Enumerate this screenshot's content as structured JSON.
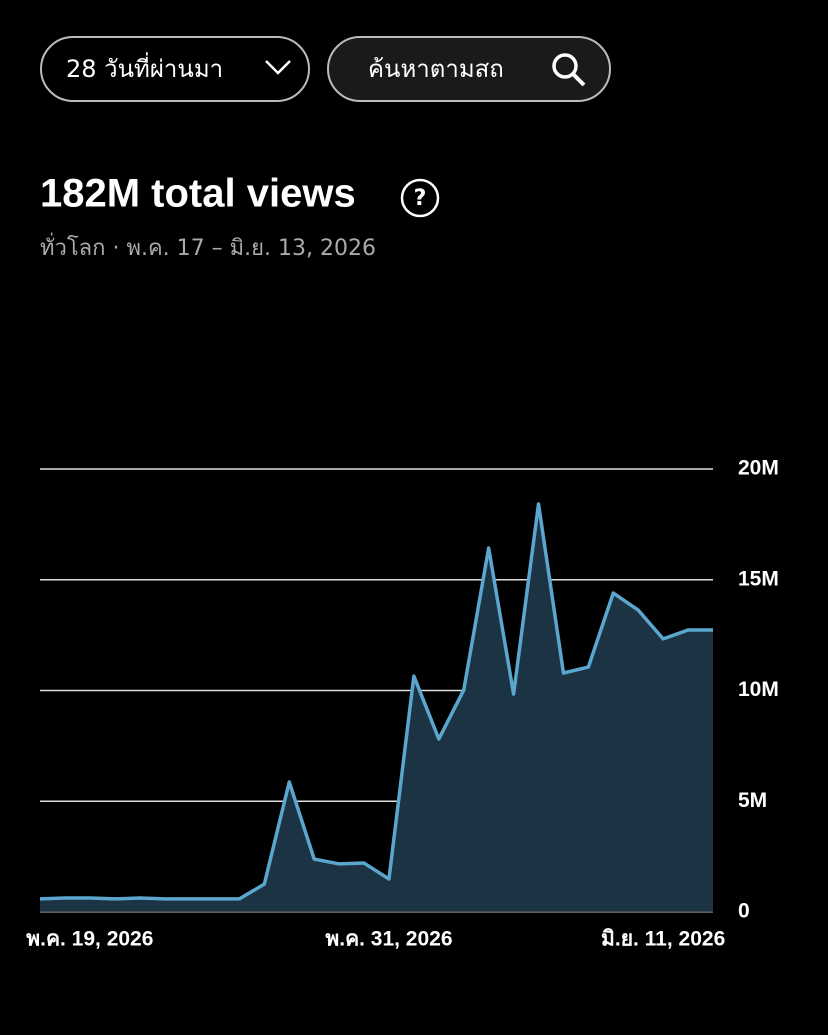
{
  "ui": {
    "range_dropdown": "28 วันที่ผ่านมา",
    "search_placeholder": "ค้นหาตามสถ"
  },
  "chart_data": {
    "type": "area",
    "title": "182M total views",
    "subtitle": "ทั่วโลก · พ.ค. 17 – มิ.ย. 13, 2026",
    "categories": [
      null,
      null,
      "พ.ค. 19, 2026",
      null,
      null,
      null,
      null,
      null,
      null,
      null,
      null,
      null,
      null,
      null,
      "พ.ค. 31, 2026",
      null,
      null,
      null,
      null,
      null,
      null,
      null,
      null,
      null,
      null,
      "มิ.ย. 11, 2026",
      null,
      null
    ],
    "series": [
      {
        "name": "views",
        "color": "#5ba6cf",
        "values": [
          590000,
          630000,
          630000,
          590000,
          630000,
          590000,
          590000,
          590000,
          590000,
          1260000,
          5870000,
          2390000,
          2170000,
          2210000,
          1490000,
          10650000,
          7810000,
          10020000,
          16430000,
          9840000,
          18420000,
          10790000,
          11060000,
          14400000,
          13630000,
          12330000,
          12730000,
          12730000
        ]
      }
    ],
    "fill_color": "#1b3343",
    "ylim": [
      0,
      20000000
    ],
    "yticks": [
      0,
      {
        "value": 5000000,
        "label": "5M"
      },
      {
        "value": 10000000,
        "label": "10M"
      },
      {
        "value": 15000000,
        "label": "15M"
      },
      {
        "value": 20000000,
        "label": "20M"
      }
    ],
    "grid": true
  }
}
